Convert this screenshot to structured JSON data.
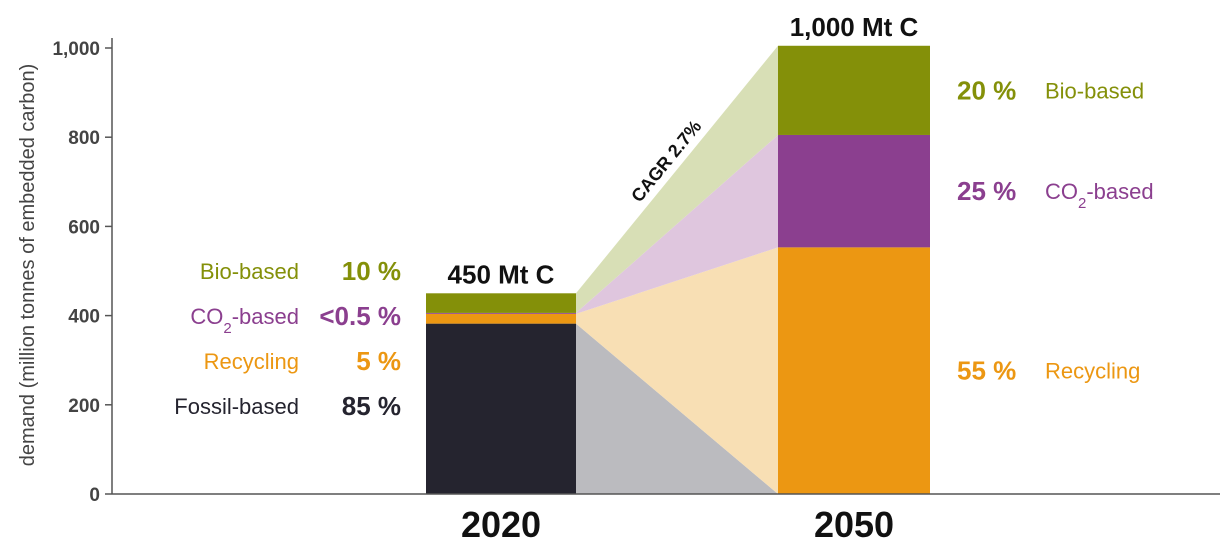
{
  "chart_data": {
    "type": "bar",
    "ylabel": "demand  (million tonnes of embedded carbon)",
    "ylim": [
      0,
      1000
    ],
    "yticks": [
      "0",
      "200",
      "400",
      "600",
      "800",
      "1,000"
    ],
    "categories": [
      "2020",
      "2050"
    ],
    "totals": [
      "450 Mt C",
      "1,000 Mt C"
    ],
    "cagr_label": "CAGR 2.7%",
    "series": [
      {
        "name": "Fossil-based",
        "color": "#25242f",
        "values": [
          382,
          0
        ],
        "pct_labels": [
          "85 %",
          ""
        ]
      },
      {
        "name": "Recycling",
        "color": "#ec9712",
        "values": [
          22,
          553
        ],
        "pct_labels": [
          "5 %",
          "55 %"
        ]
      },
      {
        "name": "CO2-based",
        "name_main": "CO",
        "name_sub": "2",
        "name_rest": "-based",
        "color": "#8b3f8f",
        "values": [
          2,
          252
        ],
        "pct_labels": [
          "<0.5 %",
          "25 %"
        ]
      },
      {
        "name": "Bio-based",
        "color": "#849009",
        "values": [
          44,
          200
        ],
        "pct_labels": [
          "10 %",
          "20 %"
        ]
      }
    ],
    "flow_colors": {
      "Fossil-based": "#bbbbbf",
      "Recycling": "#f8dfb4",
      "CO2-based": "#dfc6de",
      "Bio-based": "#d8dfb6"
    },
    "label_colors": {
      "Fossil-based": "#25242f",
      "Recycling": "#ec9712",
      "CO2-based": "#8b3f8f",
      "Bio-based": "#849009"
    }
  }
}
